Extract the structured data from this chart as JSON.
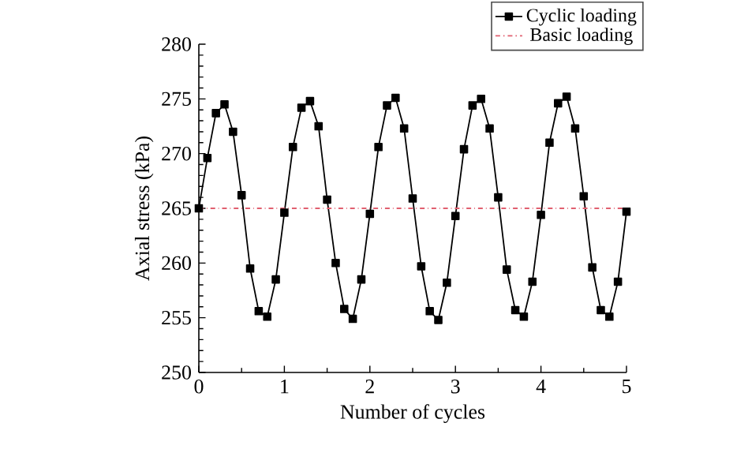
{
  "chart_data": {
    "type": "line",
    "xlabel": "Number of cycles",
    "ylabel": "Axial stress (kPa)",
    "xlim": [
      0,
      5
    ],
    "xticks": [
      0,
      1,
      2,
      3,
      4,
      5
    ],
    "ylim": [
      250,
      280
    ],
    "yticks": [
      250,
      255,
      260,
      265,
      270,
      275,
      280
    ],
    "legend": "top right",
    "grid": false,
    "series": [
      {
        "name": "Cyclic loading",
        "color": "#000000",
        "marker": "square",
        "line_style": "solid",
        "x": [
          0,
          0.1,
          0.2,
          0.3,
          0.4,
          0.5,
          0.6,
          0.7,
          0.8,
          0.9,
          1.0,
          1.1,
          1.2,
          1.3,
          1.4,
          1.5,
          1.6,
          1.7,
          1.8,
          1.9,
          2.0,
          2.1,
          2.2,
          2.3,
          2.4,
          2.5,
          2.6,
          2.7,
          2.8,
          2.9,
          3.0,
          3.1,
          3.2,
          3.3,
          3.4,
          3.5,
          3.6,
          3.7,
          3.8,
          3.9,
          4.0,
          4.1,
          4.2,
          4.3,
          4.4,
          4.5,
          4.6,
          4.7,
          4.8,
          4.9,
          5.0
        ],
        "values": [
          265.0,
          269.6,
          273.7,
          274.5,
          272.0,
          266.2,
          259.5,
          255.6,
          255.1,
          258.5,
          264.6,
          270.6,
          274.2,
          274.8,
          272.5,
          265.8,
          260.0,
          255.8,
          254.9,
          258.5,
          264.5,
          270.6,
          274.4,
          275.1,
          272.3,
          265.9,
          259.7,
          255.6,
          254.8,
          258.2,
          264.3,
          270.4,
          274.4,
          275.0,
          272.3,
          266.0,
          259.4,
          255.7,
          255.1,
          258.3,
          264.4,
          271.0,
          274.6,
          275.2,
          272.3,
          266.1,
          259.6,
          255.7,
          255.1,
          258.3,
          264.7
        ]
      },
      {
        "name": "Basic loading",
        "color": "#e06070",
        "marker": "none",
        "line_style": "dashed",
        "x": [
          0,
          5
        ],
        "values": [
          265,
          265
        ]
      }
    ]
  }
}
